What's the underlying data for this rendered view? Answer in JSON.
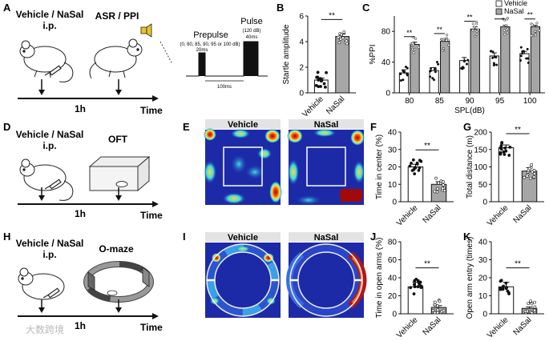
{
  "panel_letters": [
    "A",
    "B",
    "C",
    "D",
    "E",
    "F",
    "G",
    "H",
    "I",
    "J",
    "K"
  ],
  "panelA": {
    "title_line1": "Vehicle / NaSal",
    "title_line2": "i.p.",
    "test_label": "ASR / PPI",
    "time_label": "Time",
    "interval_label": "1h",
    "prepulse_title": "Prepulse",
    "prepulse_levels": "(0, 80, 85, 90, 95 or 100 dB)",
    "prepulse_duration": "20ms",
    "pulse_title": "Pulse",
    "pulse_level": "(120 dB)",
    "pulse_duration": "40ms",
    "gap_label": "100ms"
  },
  "panelD": {
    "title_line1": "Vehicle / NaSal",
    "title_line2": "i.p.",
    "test_label": "OFT",
    "time_label": "Time",
    "interval_label": "1h"
  },
  "panelH": {
    "title_line1": "Vehicle / NaSal",
    "title_line2": "i.p.",
    "test_label": "O-maze",
    "time_label": "Time",
    "interval_label": "1h"
  },
  "panelE": {
    "left_title": "Vehicle",
    "right_title": "NaSal"
  },
  "panelI": {
    "left_title": "Vehicle",
    "right_title": "NaSal"
  },
  "watermark": "大数跨境",
  "colors": {
    "vehicle": "#ffffff",
    "nasal": "#a6a6a6",
    "heat_low": "#1d2aa8",
    "heat_high": "#b01818"
  },
  "chart_data": [
    {
      "panel": "B",
      "type": "bar",
      "categories": [
        "Vehicle",
        "NaSal"
      ],
      "values": [
        1.0,
        4.4
      ],
      "errors": [
        0.15,
        0.2
      ],
      "ylabel": "Startle amplitude",
      "ylim": [
        0,
        6
      ],
      "yticks": [
        0,
        2,
        4,
        6
      ],
      "significance": "**"
    },
    {
      "panel": "C",
      "type": "bar",
      "categories": [
        "80",
        "85",
        "90",
        "95",
        "100"
      ],
      "series": [
        {
          "name": "Vehicle",
          "values": [
            26,
            29,
            42,
            48,
            51
          ],
          "errors": [
            4,
            4,
            4,
            4,
            3
          ]
        },
        {
          "name": "NaSal",
          "values": [
            63,
            67,
            83,
            86,
            86
          ],
          "errors": [
            3,
            3,
            3,
            2,
            2
          ]
        }
      ],
      "xlabel": "SPL(dB)",
      "ylabel": "%PPI",
      "ylim": [
        0,
        100
      ],
      "yticks": [
        0,
        40,
        80
      ],
      "significance": [
        "**",
        "**",
        "**",
        "**",
        "**"
      ]
    },
    {
      "panel": "F",
      "type": "bar",
      "categories": [
        "Vehicle",
        "NaSal"
      ],
      "values": [
        20,
        10
      ],
      "errors": [
        1.5,
        1.5
      ],
      "ylabel": "Time in center (%)",
      "ylim": [
        0,
        40
      ],
      "yticks": [
        0,
        10,
        20,
        30,
        40
      ],
      "significance": "**"
    },
    {
      "panel": "G",
      "type": "bar",
      "categories": [
        "Vehicle",
        "NaSal"
      ],
      "values": [
        155,
        88
      ],
      "errors": [
        8,
        10
      ],
      "ylabel": "Total distance (m)",
      "ylim": [
        0,
        200
      ],
      "yticks": [
        0,
        50,
        100,
        150,
        200
      ],
      "significance": "**"
    },
    {
      "panel": "J",
      "type": "bar",
      "categories": [
        "Vehicle",
        "NaSal"
      ],
      "values": [
        30,
        7
      ],
      "errors": [
        5,
        2
      ],
      "ylabel": "Time in open arms (%)",
      "ylim": [
        0,
        80
      ],
      "yticks": [
        0,
        20,
        40,
        60,
        80
      ],
      "significance": "**"
    },
    {
      "panel": "K",
      "type": "bar",
      "categories": [
        "Vehicle",
        "NaSal"
      ],
      "values": [
        15,
        3
      ],
      "errors": [
        2.5,
        0.8
      ],
      "ylabel": "Open arm entry (times)",
      "ylim": [
        0,
        40
      ],
      "yticks": [
        0,
        10,
        20,
        30,
        40
      ],
      "significance": "**"
    }
  ]
}
